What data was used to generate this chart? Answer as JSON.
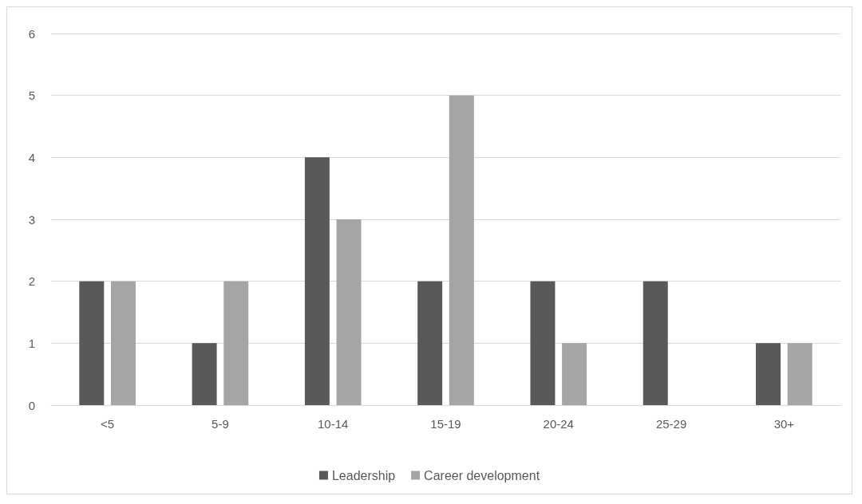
{
  "chart_data": {
    "type": "bar",
    "categories": [
      "<5",
      "5-9",
      "10-14",
      "15-19",
      "20-24",
      "25-29",
      "30+"
    ],
    "series": [
      {
        "name": "Leadership",
        "color": "#595959",
        "values": [
          2,
          1,
          4,
          2,
          2,
          2,
          1
        ]
      },
      {
        "name": "Career development",
        "color": "#a5a5a5",
        "values": [
          2,
          2,
          3,
          5,
          1,
          0,
          1
        ]
      }
    ],
    "ylim": [
      0,
      6
    ],
    "yticks": [
      0,
      1,
      2,
      3,
      4,
      5,
      6
    ],
    "grid": "y",
    "legend": "bottom"
  }
}
